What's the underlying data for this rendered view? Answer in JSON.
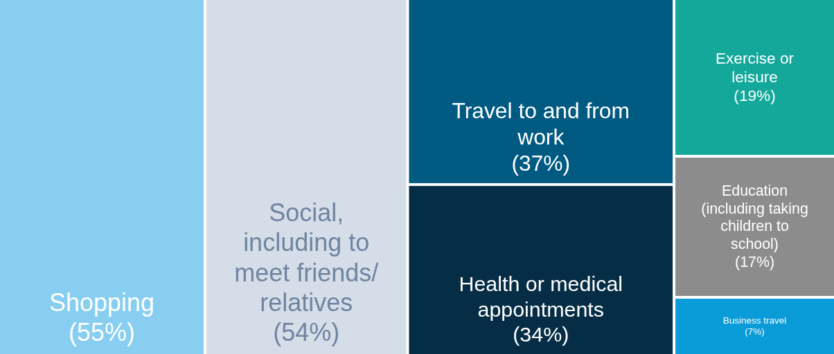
{
  "chart_data": {
    "type": "other",
    "categories": [
      "Shopping",
      "Social, including to meet friends/ relatives",
      "Travel to and from work",
      "Health or medical appointments",
      "Exercise or leisure",
      "Education (including taking children to school)",
      "Business travel"
    ],
    "values": [
      55,
      54,
      37,
      34,
      19,
      17,
      7
    ],
    "value_labels": [
      "(55%)",
      "(54%)",
      "(37%)",
      "(34%)",
      "(19%)",
      "(17%)",
      "(7%)"
    ],
    "colors": [
      "#87cef0",
      "#d5dde9",
      "#005a82",
      "#052d45",
      "#13a89a",
      "#8c8c8c",
      "#0a9bd9"
    ]
  }
}
